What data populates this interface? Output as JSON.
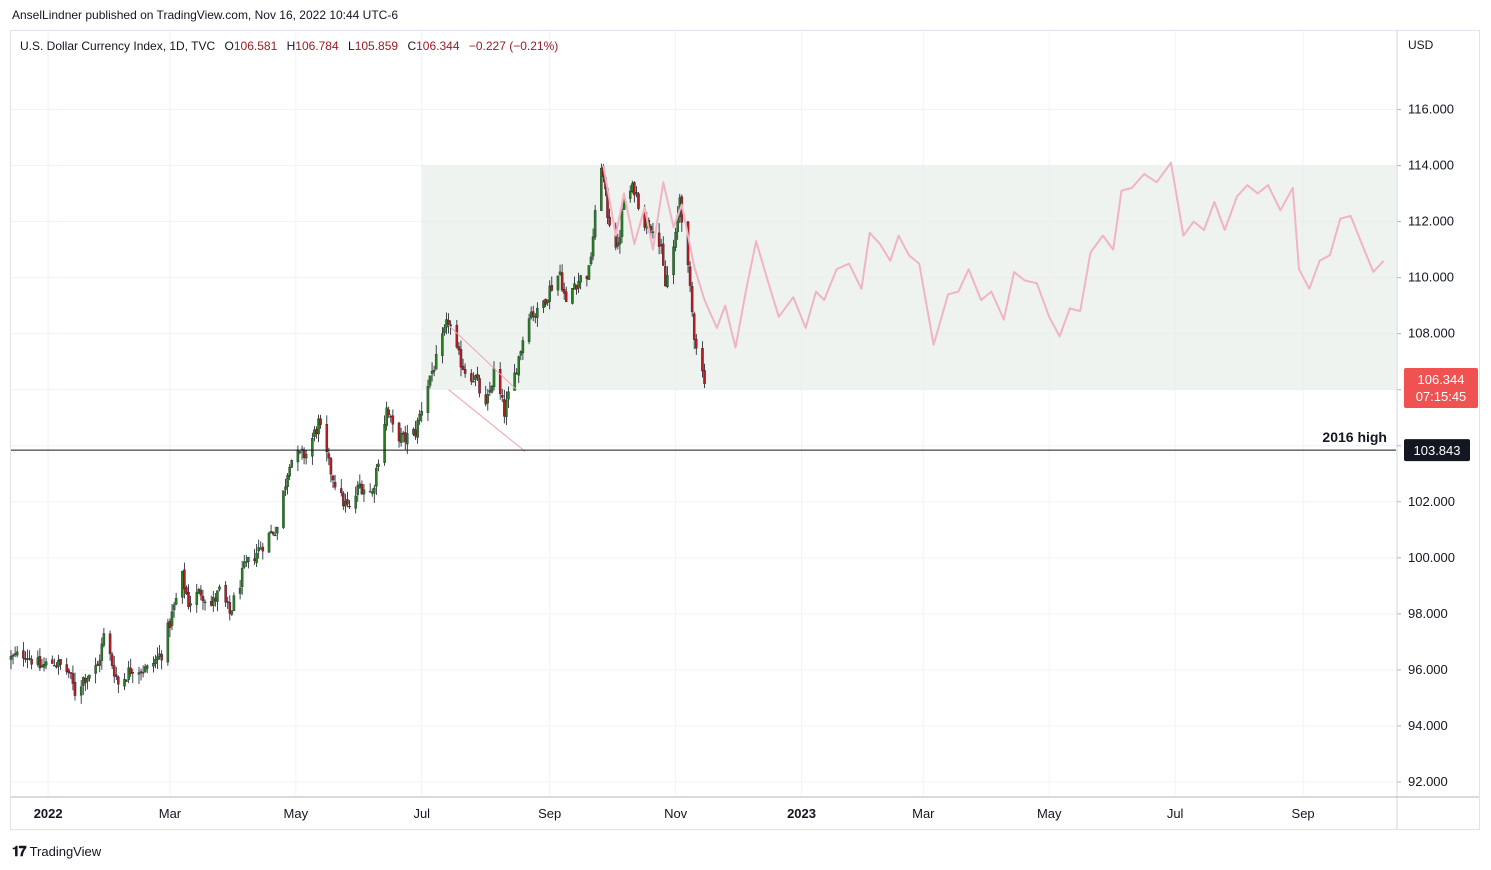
{
  "header": {
    "publisher": "AnselLindner published on TradingView.com, Nov 16, 2022 10:44 UTC-6"
  },
  "legend": {
    "symbol": "U.S. Dollar Currency Index, 1D, TVC",
    "open_label": "O",
    "open": "106.581",
    "high_label": "H",
    "high": "106.784",
    "low_label": "L",
    "low": "105.859",
    "close_label": "C",
    "close": "106.344",
    "change": "−0.227 (−0.21%)"
  },
  "price_axis": {
    "currency": "USD",
    "current_price": "106.344",
    "countdown": "07:15:45",
    "level_price": "103.843"
  },
  "annotations": {
    "level_label": "2016 high"
  },
  "footer": {
    "brand": "TradingView"
  },
  "colors": {
    "up": "#26801e",
    "down": "#b11f24",
    "projection": "#f1b4c4",
    "zone": "#e4ebe6",
    "current_price_bg": "#f05252",
    "level_bg": "#131722"
  },
  "chart_data": {
    "type": "line",
    "title": "U.S. Dollar Currency Index, 1D, TVC",
    "ylabel": "USD",
    "ylim": [
      91.5,
      118.8
    ],
    "y_ticks": [
      "116.000",
      "114.000",
      "112.000",
      "110.000",
      "108.000",
      "106.000",
      "104.000",
      "102.000",
      "100.000",
      "98.000",
      "96.000",
      "94.000",
      "92.000"
    ],
    "x_ticks": [
      {
        "label": "2022",
        "bold": true,
        "date": "2022-01-01"
      },
      {
        "label": "Mar",
        "bold": false,
        "date": "2022-03-01"
      },
      {
        "label": "May",
        "bold": false,
        "date": "2022-05-01"
      },
      {
        "label": "Jul",
        "bold": false,
        "date": "2022-07-01"
      },
      {
        "label": "Sep",
        "bold": false,
        "date": "2022-09-01"
      },
      {
        "label": "Nov",
        "bold": false,
        "date": "2022-11-01"
      },
      {
        "label": "2023",
        "bold": true,
        "date": "2023-01-01"
      },
      {
        "label": "Mar",
        "bold": false,
        "date": "2023-03-01"
      },
      {
        "label": "May",
        "bold": false,
        "date": "2023-05-01"
      },
      {
        "label": "Jul",
        "bold": false,
        "date": "2023-07-01"
      },
      {
        "label": "Sep",
        "bold": false,
        "date": "2023-09-01"
      }
    ],
    "xlim": [
      "2021-12-14",
      "2023-10-16"
    ],
    "series": [
      {
        "type": "candlestick_daily_close",
        "points": [
          [
            "2021-12-14",
            96.4
          ],
          [
            "2021-12-21",
            96.6
          ],
          [
            "2021-12-28",
            96.1
          ],
          [
            "2022-01-04",
            96.3
          ],
          [
            "2022-01-11",
            95.9
          ],
          [
            "2022-01-14",
            95.2
          ],
          [
            "2022-01-18",
            95.7
          ],
          [
            "2022-01-25",
            96.1
          ],
          [
            "2022-01-28",
            97.2
          ],
          [
            "2022-02-04",
            95.5
          ],
          [
            "2022-02-11",
            96.1
          ],
          [
            "2022-02-18",
            96.0
          ],
          [
            "2022-02-25",
            96.6
          ],
          [
            "2022-03-04",
            98.5
          ],
          [
            "2022-03-07",
            99.3
          ],
          [
            "2022-03-10",
            98.4
          ],
          [
            "2022-03-16",
            98.8
          ],
          [
            "2022-03-21",
            98.3
          ],
          [
            "2022-03-25",
            98.8
          ],
          [
            "2022-03-30",
            98.0
          ],
          [
            "2022-04-06",
            99.6
          ],
          [
            "2022-04-12",
            100.2
          ],
          [
            "2022-04-19",
            100.9
          ],
          [
            "2022-04-22",
            101.1
          ],
          [
            "2022-04-28",
            103.5
          ],
          [
            "2022-05-02",
            103.6
          ],
          [
            "2022-05-06",
            103.7
          ],
          [
            "2022-05-12",
            104.8
          ],
          [
            "2022-05-17",
            103.3
          ],
          [
            "2022-05-23",
            102.1
          ],
          [
            "2022-05-27",
            101.7
          ],
          [
            "2022-06-01",
            102.6
          ],
          [
            "2022-06-07",
            102.3
          ],
          [
            "2022-06-14",
            105.3
          ],
          [
            "2022-06-17",
            104.6
          ],
          [
            "2022-06-22",
            104.2
          ],
          [
            "2022-06-28",
            104.5
          ],
          [
            "2022-07-05",
            106.5
          ],
          [
            "2022-07-08",
            107.0
          ],
          [
            "2022-07-14",
            108.5
          ],
          [
            "2022-07-18",
            107.3
          ],
          [
            "2022-07-22",
            106.7
          ],
          [
            "2022-07-27",
            106.4
          ],
          [
            "2022-08-01",
            105.3
          ],
          [
            "2022-08-05",
            106.6
          ],
          [
            "2022-08-10",
            105.2
          ],
          [
            "2022-08-15",
            106.5
          ],
          [
            "2022-08-22",
            108.8
          ],
          [
            "2022-08-26",
            108.7
          ],
          [
            "2022-09-01",
            109.6
          ],
          [
            "2022-09-06",
            110.2
          ],
          [
            "2022-09-09",
            109.0
          ],
          [
            "2022-09-13",
            109.8
          ],
          [
            "2022-09-20",
            110.2
          ],
          [
            "2022-09-26",
            114.1
          ],
          [
            "2022-09-29",
            112.3
          ],
          [
            "2022-10-04",
            111.0
          ],
          [
            "2022-10-07",
            112.8
          ],
          [
            "2022-10-12",
            113.2
          ],
          [
            "2022-10-17",
            112.0
          ],
          [
            "2022-10-21",
            111.9
          ],
          [
            "2022-10-25",
            110.9
          ],
          [
            "2022-10-27",
            109.7
          ],
          [
            "2022-11-01",
            111.4
          ],
          [
            "2022-11-03",
            112.9
          ],
          [
            "2022-11-07",
            110.2
          ],
          [
            "2022-11-10",
            108.0
          ],
          [
            "2022-11-14",
            106.6
          ],
          [
            "2022-11-16",
            106.3
          ]
        ]
      },
      {
        "type": "projection_line",
        "points": [
          [
            "2022-09-27",
            114.0
          ],
          [
            "2022-10-03",
            111.5
          ],
          [
            "2022-10-07",
            113.0
          ],
          [
            "2022-10-12",
            111.2
          ],
          [
            "2022-10-17",
            112.5
          ],
          [
            "2022-10-21",
            111.0
          ],
          [
            "2022-10-26",
            113.4
          ],
          [
            "2022-10-31",
            111.8
          ],
          [
            "2022-11-04",
            112.6
          ],
          [
            "2022-11-10",
            110.4
          ],
          [
            "2022-11-15",
            109.2
          ],
          [
            "2022-11-21",
            108.2
          ],
          [
            "2022-11-25",
            109.0
          ],
          [
            "2022-11-30",
            107.5
          ],
          [
            "2022-12-05",
            109.5
          ],
          [
            "2022-12-10",
            111.3
          ],
          [
            "2022-12-16",
            109.8
          ],
          [
            "2022-12-21",
            108.6
          ],
          [
            "2022-12-28",
            109.3
          ],
          [
            "2023-01-03",
            108.2
          ],
          [
            "2023-01-08",
            109.5
          ],
          [
            "2023-01-12",
            109.2
          ],
          [
            "2023-01-18",
            110.3
          ],
          [
            "2023-01-24",
            110.5
          ],
          [
            "2023-01-30",
            109.6
          ],
          [
            "2023-02-03",
            111.6
          ],
          [
            "2023-02-08",
            111.2
          ],
          [
            "2023-02-13",
            110.6
          ],
          [
            "2023-02-17",
            111.5
          ],
          [
            "2023-02-22",
            110.8
          ],
          [
            "2023-02-27",
            110.5
          ],
          [
            "2023-03-06",
            107.6
          ],
          [
            "2023-03-13",
            109.4
          ],
          [
            "2023-03-18",
            109.5
          ],
          [
            "2023-03-23",
            110.3
          ],
          [
            "2023-03-29",
            109.2
          ],
          [
            "2023-04-03",
            109.5
          ],
          [
            "2023-04-09",
            108.5
          ],
          [
            "2023-04-14",
            110.2
          ],
          [
            "2023-04-19",
            109.9
          ],
          [
            "2023-04-25",
            109.8
          ],
          [
            "2023-05-01",
            108.6
          ],
          [
            "2023-05-06",
            107.9
          ],
          [
            "2023-05-11",
            108.9
          ],
          [
            "2023-05-16",
            108.8
          ],
          [
            "2023-05-21",
            110.9
          ],
          [
            "2023-05-27",
            111.5
          ],
          [
            "2023-06-01",
            111.0
          ],
          [
            "2023-06-05",
            113.1
          ],
          [
            "2023-06-10",
            113.2
          ],
          [
            "2023-06-16",
            113.7
          ],
          [
            "2023-06-22",
            113.4
          ],
          [
            "2023-06-29",
            114.1
          ],
          [
            "2023-07-05",
            111.5
          ],
          [
            "2023-07-10",
            112.0
          ],
          [
            "2023-07-15",
            111.7
          ],
          [
            "2023-07-20",
            112.7
          ],
          [
            "2023-07-25",
            111.7
          ],
          [
            "2023-07-31",
            112.9
          ],
          [
            "2023-08-05",
            113.3
          ],
          [
            "2023-08-10",
            113.0
          ],
          [
            "2023-08-15",
            113.3
          ],
          [
            "2023-08-21",
            112.4
          ],
          [
            "2023-08-27",
            113.2
          ],
          [
            "2023-08-30",
            110.3
          ],
          [
            "2023-09-04",
            109.6
          ],
          [
            "2023-09-09",
            110.6
          ],
          [
            "2023-09-14",
            110.8
          ],
          [
            "2023-09-19",
            112.1
          ],
          [
            "2023-09-24",
            112.2
          ],
          [
            "2023-09-30",
            111.1
          ],
          [
            "2023-10-05",
            110.2
          ],
          [
            "2023-10-10",
            110.6
          ]
        ]
      }
    ],
    "range_zone": {
      "x_start": "2022-07-01",
      "x_end": "2023-10-16",
      "y_low": 106.0,
      "y_high": 114.0
    },
    "horizontal_level": {
      "y": 103.843
    },
    "channel": {
      "upper": [
        [
          "2022-07-14",
          108.3
        ],
        [
          "2022-08-16",
          106.0
        ]
      ],
      "lower": [
        [
          "2022-07-14",
          106.0
        ],
        [
          "2022-08-20",
          103.8
        ]
      ]
    },
    "grid": true,
    "legend": "top-left"
  }
}
